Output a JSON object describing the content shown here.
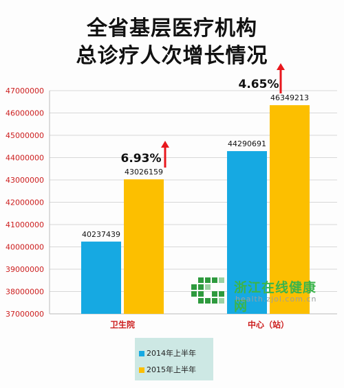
{
  "title_line1": "全省基层医疗机构",
  "title_line2": "总诊疗人次增长情况",
  "watermark": {
    "name": "浙江在线健康网",
    "url": "health.zjol.com.cn"
  },
  "colors": {
    "series_2014": "#16a9e2",
    "series_2015": "#fcbf00",
    "arrow": "#e8171d",
    "axis_text": "#cc1d1d"
  },
  "chart_data": {
    "type": "bar",
    "title": "全省基层医疗机构总诊疗人次增长情况",
    "categories": [
      "卫生院",
      "中心（站）"
    ],
    "series": [
      {
        "name": "2014年上半年",
        "values": [
          40237439,
          44290691
        ]
      },
      {
        "name": "2015年上半年",
        "values": [
          43026159,
          46349213
        ]
      }
    ],
    "ylim": [
      37000000,
      47000000
    ],
    "yticks": [
      37000000,
      38000000,
      39000000,
      40000000,
      41000000,
      42000000,
      43000000,
      44000000,
      45000000,
      46000000,
      47000000
    ],
    "annotations": [
      "6.93%",
      "4.65%"
    ],
    "grid": true,
    "legend": "bottom"
  }
}
